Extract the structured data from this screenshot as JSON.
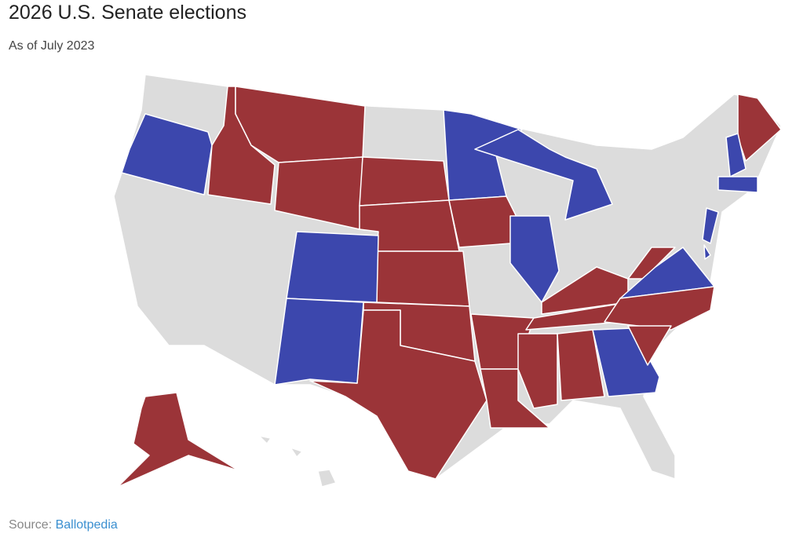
{
  "header": {
    "title": "2026 U.S. Senate elections",
    "subtitle": "As of July 2023"
  },
  "footer": {
    "source_label": "Source:",
    "source_link": "Ballotpedia"
  }
}
